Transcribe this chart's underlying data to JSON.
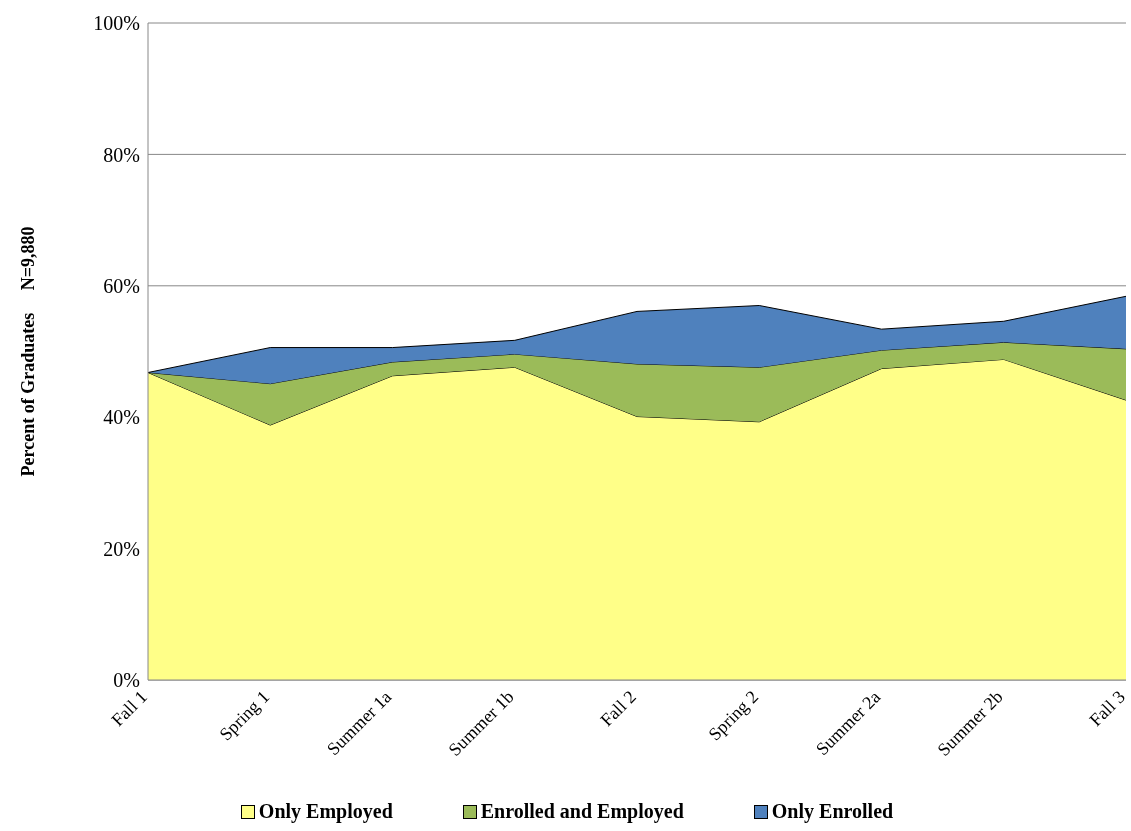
{
  "chart_data": {
    "type": "area",
    "stacked": true,
    "ylabel": "Percent of Graduates     N=9,880",
    "categories": [
      "Fall 1",
      "Spring 1",
      "Summer 1a",
      "Summer 1b",
      "Fall 2",
      "Spring 2",
      "Summer 2a",
      "Summer 2b",
      "Fall 3"
    ],
    "series": [
      {
        "name": "Only Employed",
        "color": "#ffff88",
        "values": [
          46.8,
          38.8,
          46.3,
          47.6,
          40.1,
          39.3,
          47.4,
          48.8,
          42.6
        ]
      },
      {
        "name": "Enrolled and Employed",
        "color": "#9bbb59",
        "values": [
          0,
          6.3,
          2.1,
          2.0,
          8.0,
          8.3,
          2.8,
          2.6,
          7.8
        ]
      },
      {
        "name": "Only Enrolled",
        "color": "#4f81bd",
        "values": [
          0,
          5.5,
          2.2,
          2.1,
          8.0,
          9.4,
          3.2,
          3.2,
          8.0
        ]
      }
    ],
    "ylim": [
      0,
      100
    ],
    "yticks": [
      {
        "value": 0,
        "label": "0%"
      },
      {
        "value": 20,
        "label": "20%"
      },
      {
        "value": 40,
        "label": "40%"
      },
      {
        "value": 60,
        "label": "60%"
      },
      {
        "value": 80,
        "label": "80%"
      },
      {
        "value": 100,
        "label": "100%"
      }
    ],
    "grid": "y",
    "legend": "bottom"
  }
}
